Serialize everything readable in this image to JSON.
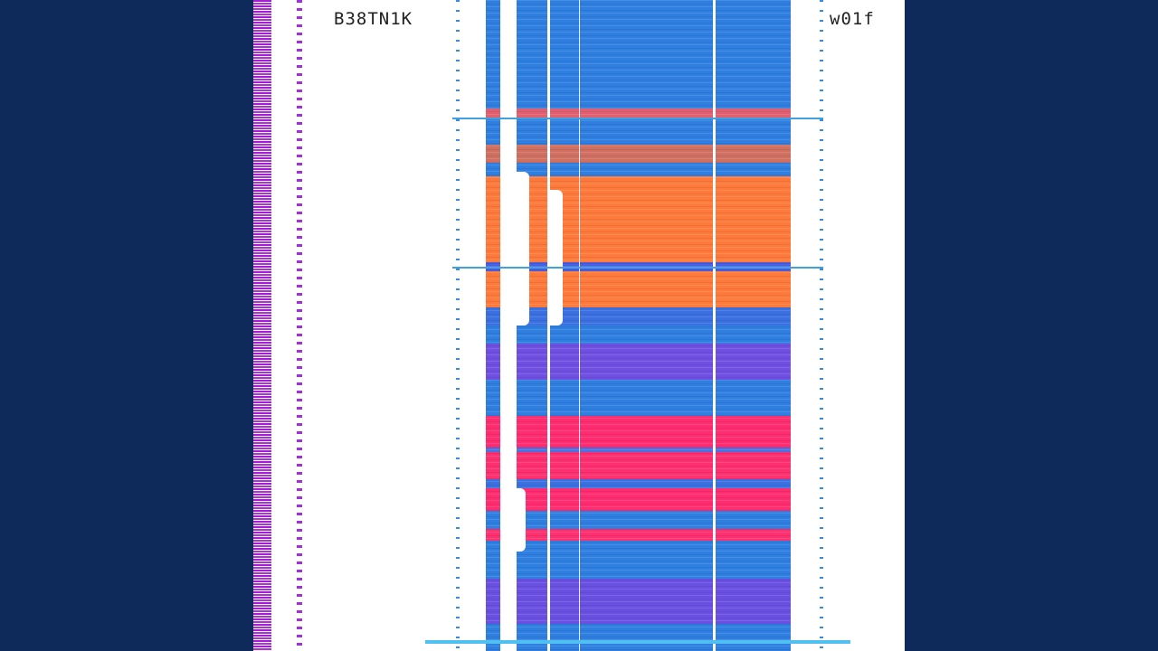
{
  "cover": {
    "artist": "B38TN1K",
    "track": "w01f"
  },
  "colors": {
    "background": "#0e2a5a",
    "blue": "#2f7fe0",
    "orange": "#ff7a3a",
    "pink": "#ff2c70",
    "purple": "#a020d0"
  }
}
